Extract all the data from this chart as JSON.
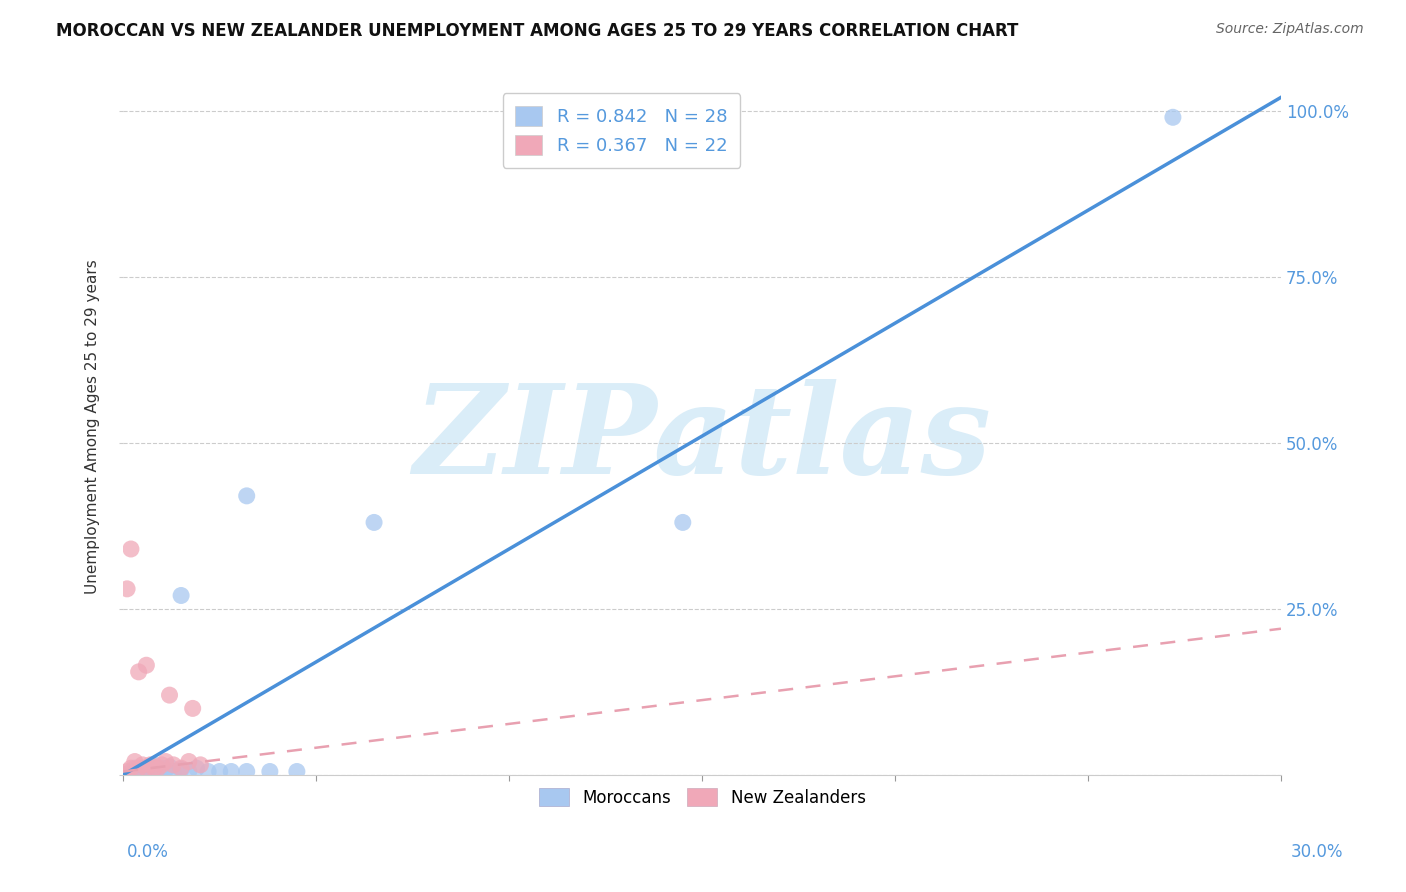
{
  "title": "MOROCCAN VS NEW ZEALANDER UNEMPLOYMENT AMONG AGES 25 TO 29 YEARS CORRELATION CHART",
  "source": "Source: ZipAtlas.com",
  "ylabel_label": "Unemployment Among Ages 25 to 29 years",
  "xlim": [
    0.0,
    0.3
  ],
  "ylim": [
    0.0,
    1.05
  ],
  "legend_entries": [
    {
      "label": "R = 0.842   N = 28",
      "color": "#a8c8f0"
    },
    {
      "label": "R = 0.367   N = 22",
      "color": "#f0a8b8"
    }
  ],
  "moroccan_scatter": [
    [
      0.0,
      0.0
    ],
    [
      0.001,
      0.0
    ],
    [
      0.002,
      0.005
    ],
    [
      0.003,
      0.01
    ],
    [
      0.004,
      0.005
    ],
    [
      0.005,
      0.01
    ],
    [
      0.006,
      0.005
    ],
    [
      0.007,
      0.01
    ],
    [
      0.008,
      0.015
    ],
    [
      0.009,
      0.005
    ],
    [
      0.01,
      0.01
    ],
    [
      0.011,
      0.008
    ],
    [
      0.012,
      0.012
    ],
    [
      0.013,
      0.005
    ],
    [
      0.015,
      0.008
    ],
    [
      0.017,
      0.005
    ],
    [
      0.019,
      0.01
    ],
    [
      0.022,
      0.005
    ],
    [
      0.025,
      0.005
    ],
    [
      0.028,
      0.005
    ],
    [
      0.032,
      0.005
    ],
    [
      0.038,
      0.005
    ],
    [
      0.045,
      0.005
    ],
    [
      0.015,
      0.27
    ],
    [
      0.032,
      0.42
    ],
    [
      0.065,
      0.38
    ],
    [
      0.145,
      0.38
    ],
    [
      0.272,
      0.99
    ]
  ],
  "nz_scatter": [
    [
      0.0,
      0.0
    ],
    [
      0.001,
      0.005
    ],
    [
      0.002,
      0.01
    ],
    [
      0.003,
      0.02
    ],
    [
      0.004,
      0.01
    ],
    [
      0.005,
      0.015
    ],
    [
      0.006,
      0.01
    ],
    [
      0.007,
      0.015
    ],
    [
      0.008,
      0.01
    ],
    [
      0.009,
      0.01
    ],
    [
      0.01,
      0.015
    ],
    [
      0.011,
      0.02
    ],
    [
      0.013,
      0.015
    ],
    [
      0.015,
      0.01
    ],
    [
      0.017,
      0.02
    ],
    [
      0.02,
      0.015
    ],
    [
      0.001,
      0.28
    ],
    [
      0.002,
      0.34
    ],
    [
      0.004,
      0.155
    ],
    [
      0.006,
      0.165
    ],
    [
      0.012,
      0.12
    ],
    [
      0.018,
      0.1
    ]
  ],
  "moroccan_line_color": "#4a90d9",
  "nz_line_color": "#e8a0b0",
  "moroccan_scatter_color": "#a8c8f0",
  "nz_scatter_color": "#f0a8b8",
  "watermark": "ZIPatlas",
  "watermark_color": "#daedf8",
  "grid_color": "#cccccc",
  "background_color": "#ffffff",
  "title_fontsize": 12,
  "axis_tick_color": "#5599dd",
  "scatter_size": 150,
  "right_ytick_vals": [
    0.0,
    0.25,
    0.5,
    0.75,
    1.0
  ],
  "right_ytick_labels": [
    "",
    "25.0%",
    "50.0%",
    "75.0%",
    "100.0%"
  ]
}
